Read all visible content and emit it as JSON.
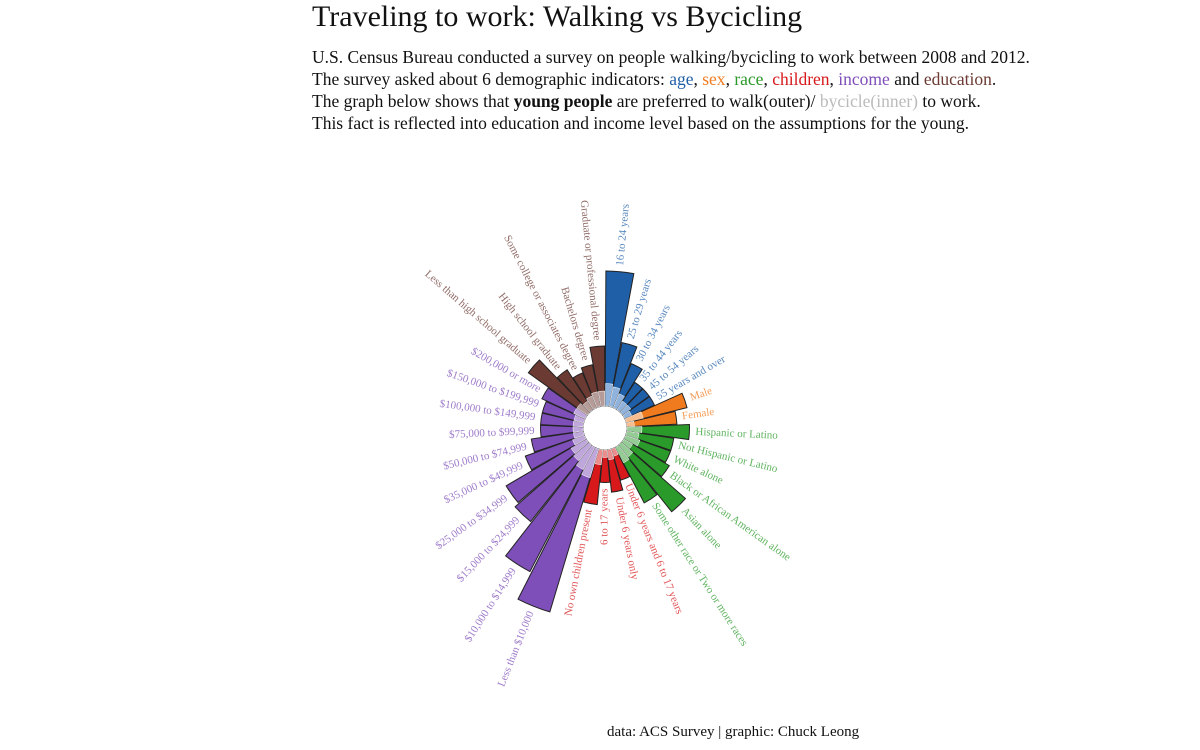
{
  "chart_data": {
    "type": "radial_bar",
    "title": "Traveling to work: Walking vs Bycicling",
    "subtitle": [
      "U.S. Census Bureau conducted a survey on people walking/bycicling to work between 2008 and 2012.",
      [
        "The survey asked about 6 demographic indicators: ",
        ", ",
        ", ",
        ", ",
        " and ",
        "."
      ],
      [
        "The graph below shows that ",
        "young people",
        " are preferred to walk(outer)/ ",
        "bycicle(inner)",
        " to work."
      ],
      "This fact is reflected into education and income level based on the assumptions for the young."
    ],
    "caption": "data: ACS Survey | graphic: Chuck Leong",
    "groups": [
      {
        "name": "age",
        "categories": [
          "16 to 24 years",
          "25 to 29 years",
          "30 to 34 years",
          "35 to 44 years",
          "45 to 54 years",
          "55 years and over"
        ],
        "series": [
          {
            "color": "#1f5fa8",
            "values": [
              5.4,
              2.6,
              1.9,
              1.3,
              1.3,
              1.3
            ]
          },
          {
            "color": "#8fb3dc",
            "values": [
              0.9,
              0.8,
              0.6,
              0.4,
              0.4,
              0.3
            ]
          }
        ]
      },
      {
        "name": "sex",
        "categories": [
          "Male",
          "Female"
        ],
        "series": [
          {
            "color": "#f07b1f",
            "values": [
              2.5,
              2.0
            ]
          },
          {
            "color": "#f7bd8e",
            "values": [
              0.7,
              0.3
            ]
          }
        ]
      },
      {
        "name": "race",
        "categories": [
          "Hispanic or Latino",
          "Not Hispanic or Latino",
          "White alone",
          "Black or African American alone",
          "Asian alone",
          "Some other race or Two or more races"
        ],
        "series": [
          {
            "color": "#2a9a2a",
            "values": [
              2.5,
              1.9,
              1.9,
              2.1,
              3.4,
              2.5
            ]
          },
          {
            "color": "#95cc95",
            "values": [
              0.6,
              0.5,
              0.6,
              0.4,
              0.6,
              0.7
            ]
          }
        ]
      },
      {
        "name": "children",
        "categories": [
          "Under 6 years and 6 to 17 years",
          "Under 6 years only",
          "6 to 17 years",
          "No own children present"
        ],
        "series": [
          {
            "color": "#d7191c",
            "values": [
              1.3,
              1.7,
              1.3,
              2.2
            ]
          },
          {
            "color": "#eb8c8d",
            "values": [
              0.3,
              0.4,
              0.3,
              0.6
            ]
          }
        ]
      },
      {
        "name": "income",
        "categories": [
          "Less than $10,000",
          "$10,000 to $14,999",
          "$15,000 to $24,999",
          "$25,000 to $34,999",
          "$35,000 to $49,999",
          "$50,000 to $74,999",
          "$75,000 to $99,999",
          "$100,000 to $149,999",
          "$150,000 to $199,999",
          "$200,000 or more"
        ],
        "series": [
          {
            "color": "#7e4fb8",
            "values": [
              6.8,
              5.6,
              3.9,
              3.7,
              2.5,
              2.1,
              1.7,
              1.7,
              1.7,
              1.9
            ]
          },
          {
            "color": "#bfa7dc",
            "values": [
              1.2,
              1.0,
              0.8,
              0.7,
              0.5,
              0.4,
              0.4,
              0.4,
              0.4,
              0.5
            ]
          }
        ]
      },
      {
        "name": "education",
        "categories": [
          "Less than high school graduate",
          "High school graduate",
          "Some college or associates degree",
          "Bachelors degree",
          "Graduate or professional degree"
        ],
        "series": [
          {
            "color": "#6b3a33",
            "values": [
              2.9,
              1.9,
              1.5,
              1.7,
              2.4
            ]
          },
          {
            "color": "#b59c99",
            "values": [
              0.5,
              0.4,
              0.5,
              0.6,
              0.6
            ]
          }
        ]
      }
    ]
  }
}
